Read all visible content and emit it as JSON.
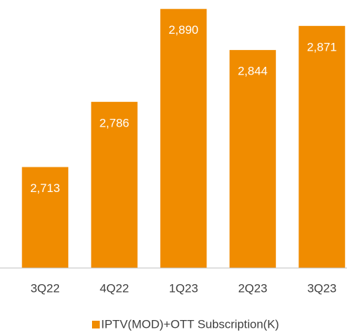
{
  "chart_data": {
    "type": "bar",
    "categories": [
      "3Q22",
      "4Q22",
      "1Q23",
      "2Q23",
      "3Q23"
    ],
    "series": [
      {
        "name": "IPTV(MOD)+OTT Subscription(K)",
        "color": "#f08c00",
        "values": [
          2713,
          2786,
          2890,
          2844,
          2871
        ],
        "value_labels": [
          "2,713",
          "2,786",
          "2,890",
          "2,844",
          "2,871"
        ]
      }
    ],
    "ylim": [
      2600,
      2900
    ]
  }
}
